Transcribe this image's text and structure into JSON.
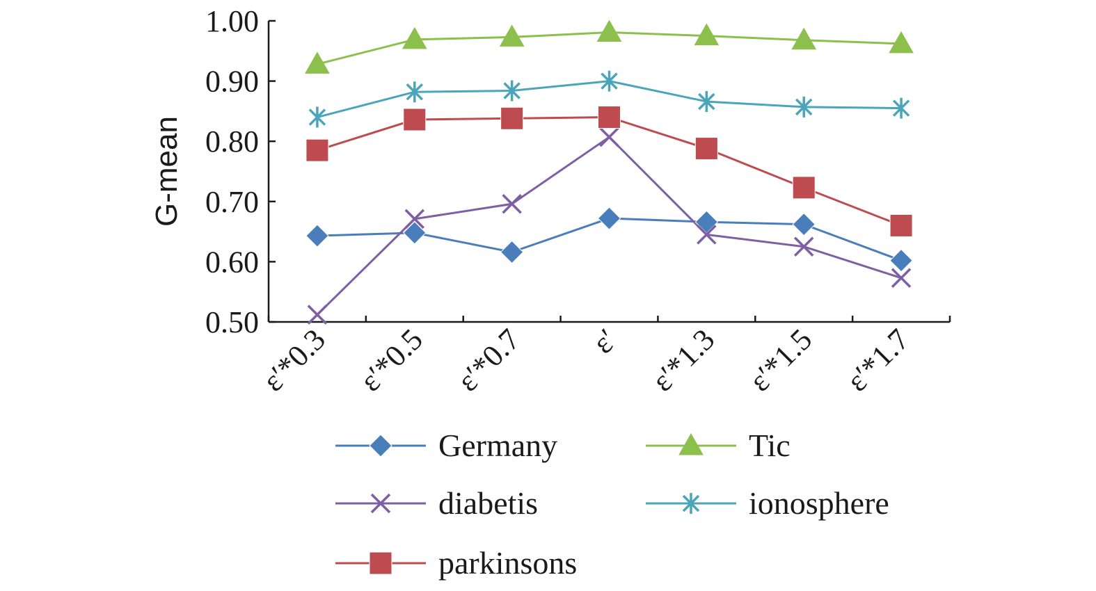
{
  "chart_data": {
    "type": "line",
    "title": "",
    "xlabel": "",
    "ylabel": "G-mean",
    "ylim": [
      0.5,
      1.0
    ],
    "yticks": [
      "0.50",
      "0.60",
      "0.70",
      "0.80",
      "0.90",
      "1.00"
    ],
    "categories": [
      "ε′*0.3",
      "ε′*0.5",
      "ε′*0.7",
      "ε′",
      "ε′*1.3",
      "ε′*1.5",
      "ε′*1.7"
    ],
    "grid": false,
    "legend_position": "bottom",
    "series": [
      {
        "name": "Germany",
        "marker": "diamond",
        "color": "#4a7ebb",
        "line_color": "#4a7ebb",
        "values": [
          0.643,
          0.648,
          0.616,
          0.672,
          0.666,
          0.662,
          0.602
        ]
      },
      {
        "name": "Tic",
        "marker": "triangle",
        "color": "#8cbf4c",
        "line_color": "#8cbf4c",
        "values": [
          0.928,
          0.969,
          0.973,
          0.981,
          0.975,
          0.968,
          0.962
        ]
      },
      {
        "name": "diabetis",
        "marker": "x",
        "color": "#7e5fa4",
        "line_color": "#7e5fa4",
        "values": [
          0.512,
          0.671,
          0.696,
          0.807,
          0.645,
          0.625,
          0.573
        ]
      },
      {
        "name": "ionosphere",
        "marker": "asterisk",
        "color": "#4aa5ba",
        "line_color": "#4aa5ba",
        "values": [
          0.84,
          0.882,
          0.884,
          0.9,
          0.866,
          0.857,
          0.855
        ]
      },
      {
        "name": "parkinsons",
        "marker": "square",
        "color": "#be4b4f",
        "line_color": "#be4b4f",
        "values": [
          0.785,
          0.836,
          0.838,
          0.84,
          0.788,
          0.723,
          0.66
        ]
      }
    ]
  }
}
